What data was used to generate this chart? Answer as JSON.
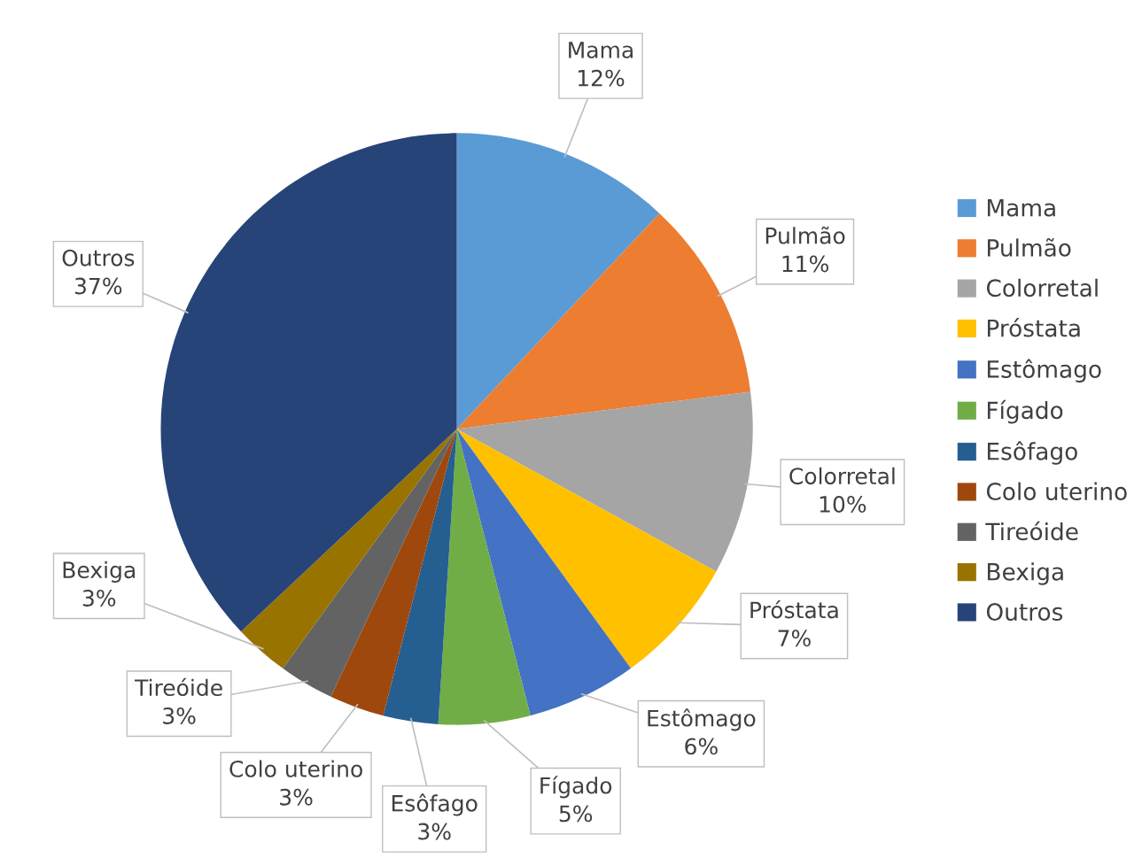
{
  "chart_data": {
    "type": "pie",
    "categories": [
      "Mama",
      "Pulmão",
      "Colorretal",
      "Próstata",
      "Estômago",
      "Fígado",
      "Esôfago",
      "Colo uterino",
      "Tireóide",
      "Bexiga",
      "Outros"
    ],
    "values": [
      12,
      11,
      10,
      7,
      6,
      5,
      3,
      3,
      3,
      3,
      37
    ],
    "value_labels": [
      "12%",
      "11%",
      "10%",
      "7%",
      "6%",
      "5%",
      "3%",
      "3%",
      "3%",
      "3%",
      "37%"
    ],
    "colors": [
      "#5b9bd5",
      "#ed7d31",
      "#a5a5a5",
      "#ffc000",
      "#4472c4",
      "#70ad47",
      "#255e91",
      "#9e480e",
      "#636363",
      "#997300",
      "#264478"
    ],
    "legend": "right"
  }
}
